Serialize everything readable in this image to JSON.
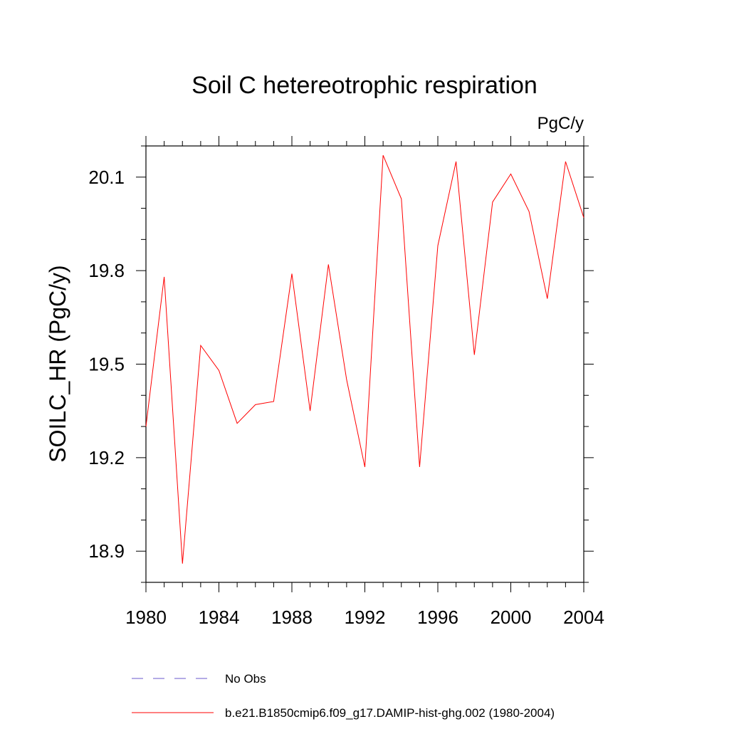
{
  "chart_data": {
    "type": "line",
    "title": "Soil C hetereotrophic respiration",
    "units_label": "PgC/y",
    "ylabel": "SOILC_HR  (PgC/y)",
    "xlabel": "",
    "xlim": [
      1980,
      2004
    ],
    "ylim": [
      18.8,
      20.2
    ],
    "x_ticks": [
      1980,
      1984,
      1988,
      1992,
      1996,
      2000,
      2004
    ],
    "x_tick_labels": [
      "1980",
      "1984",
      "1988",
      "1992",
      "1996",
      "2000",
      "2004"
    ],
    "y_ticks": [
      18.9,
      19.2,
      19.5,
      19.8,
      20.1
    ],
    "y_tick_labels": [
      "18.9",
      "19.2",
      "19.5",
      "19.8",
      "20.1"
    ],
    "grid": false,
    "series": [
      {
        "name": "b.e21.B1850cmip6.f09_g17.DAMIP-hist-ghg.002 (1980-2004)",
        "color": "#ff0000",
        "x": [
          1980,
          1981,
          1982,
          1983,
          1984,
          1985,
          1986,
          1987,
          1988,
          1989,
          1990,
          1991,
          1992,
          1993,
          1994,
          1995,
          1996,
          1997,
          1998,
          1999,
          2000,
          2001,
          2002,
          2003,
          2004
        ],
        "y": [
          19.3,
          19.78,
          18.86,
          19.56,
          19.48,
          19.31,
          19.37,
          19.38,
          19.79,
          19.35,
          19.82,
          19.45,
          19.17,
          20.17,
          20.03,
          19.17,
          19.88,
          20.15,
          19.53,
          20.02,
          20.11,
          19.99,
          19.71,
          20.15,
          19.97
        ]
      }
    ],
    "legend": {
      "placement": "bottom",
      "entries": [
        {
          "label": "No Obs",
          "style": "dashed",
          "color": "#6a5acd"
        },
        {
          "label": "b.e21.B1850cmip6.f09_g17.DAMIP-hist-ghg.002 (1980-2004)",
          "style": "solid",
          "color": "#ff0000"
        }
      ]
    }
  }
}
